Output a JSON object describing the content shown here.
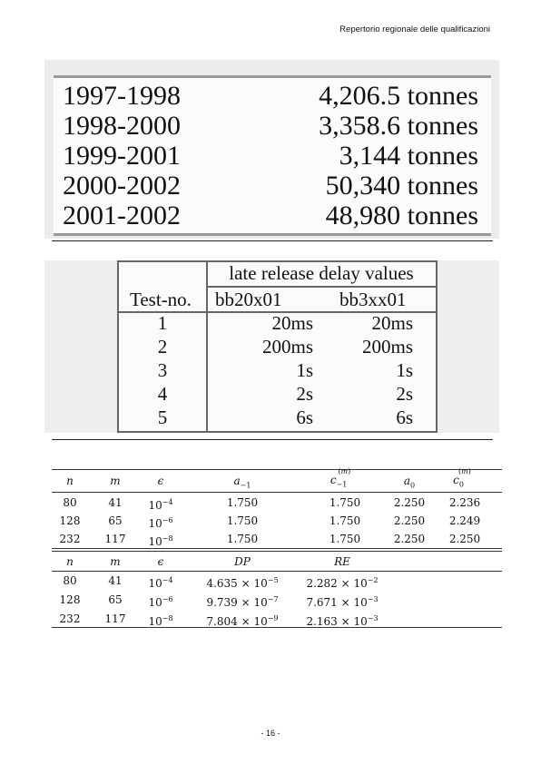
{
  "header": {
    "title": "Repertorio regionale delle qualificazioni"
  },
  "table1": {
    "rows": [
      {
        "years": "1997-1998",
        "amount": "4,206.5 tonnes"
      },
      {
        "years": "1998-2000",
        "amount": "3,358.6 tonnes"
      },
      {
        "years": "1999-2001",
        "amount": "3,144 tonnes"
      },
      {
        "years": "2000-2002",
        "amount": "50,340 tonnes"
      },
      {
        "years": "2001-2002",
        "amount": "48,980 tonnes"
      }
    ]
  },
  "table2": {
    "group_header": "late release delay values",
    "col_test": "Test-no.",
    "col_a": "bb20x01",
    "col_b": "bb3xx01",
    "rows": [
      {
        "test": "1",
        "a": "20ms",
        "b": "20ms"
      },
      {
        "test": "2",
        "a": "200ms",
        "b": "200ms"
      },
      {
        "test": "3",
        "a": "1s",
        "b": "1s"
      },
      {
        "test": "4",
        "a": "2s",
        "b": "2s"
      },
      {
        "test": "5",
        "a": "6s",
        "b": "6s"
      }
    ]
  },
  "table3": {
    "top_headers": [
      "n",
      "m",
      "ϵ",
      "a",
      "c",
      "a",
      "c"
    ],
    "top_rows": [
      {
        "n": "80",
        "m": "41",
        "eps_exp": "−4",
        "a_m1": "1.750",
        "c_m1": "1.750",
        "a0": "2.250",
        "c0": "2.236"
      },
      {
        "n": "128",
        "m": "65",
        "eps_exp": "−6",
        "a_m1": "1.750",
        "c_m1": "1.750",
        "a0": "2.250",
        "c0": "2.249"
      },
      {
        "n": "232",
        "m": "117",
        "eps_exp": "−8",
        "a_m1": "1.750",
        "c_m1": "1.750",
        "a0": "2.250",
        "c0": "2.250"
      }
    ],
    "bottom_headers": [
      "n",
      "m",
      "ϵ",
      "DP",
      "RE"
    ],
    "bottom_rows": [
      {
        "n": "80",
        "m": "41",
        "eps_exp": "−4",
        "dp_mant": "4.635",
        "dp_exp": "−5",
        "re_mant": "2.282",
        "re_exp": "−2"
      },
      {
        "n": "128",
        "m": "65",
        "eps_exp": "−6",
        "dp_mant": "9.739",
        "dp_exp": "−7",
        "re_mant": "7.671",
        "re_exp": "−3"
      },
      {
        "n": "232",
        "m": "117",
        "eps_exp": "−8",
        "dp_mant": "7.804",
        "dp_exp": "−9",
        "re_mant": "2.163",
        "re_exp": "−3"
      }
    ]
  },
  "footer": {
    "page": "- 16 -"
  }
}
